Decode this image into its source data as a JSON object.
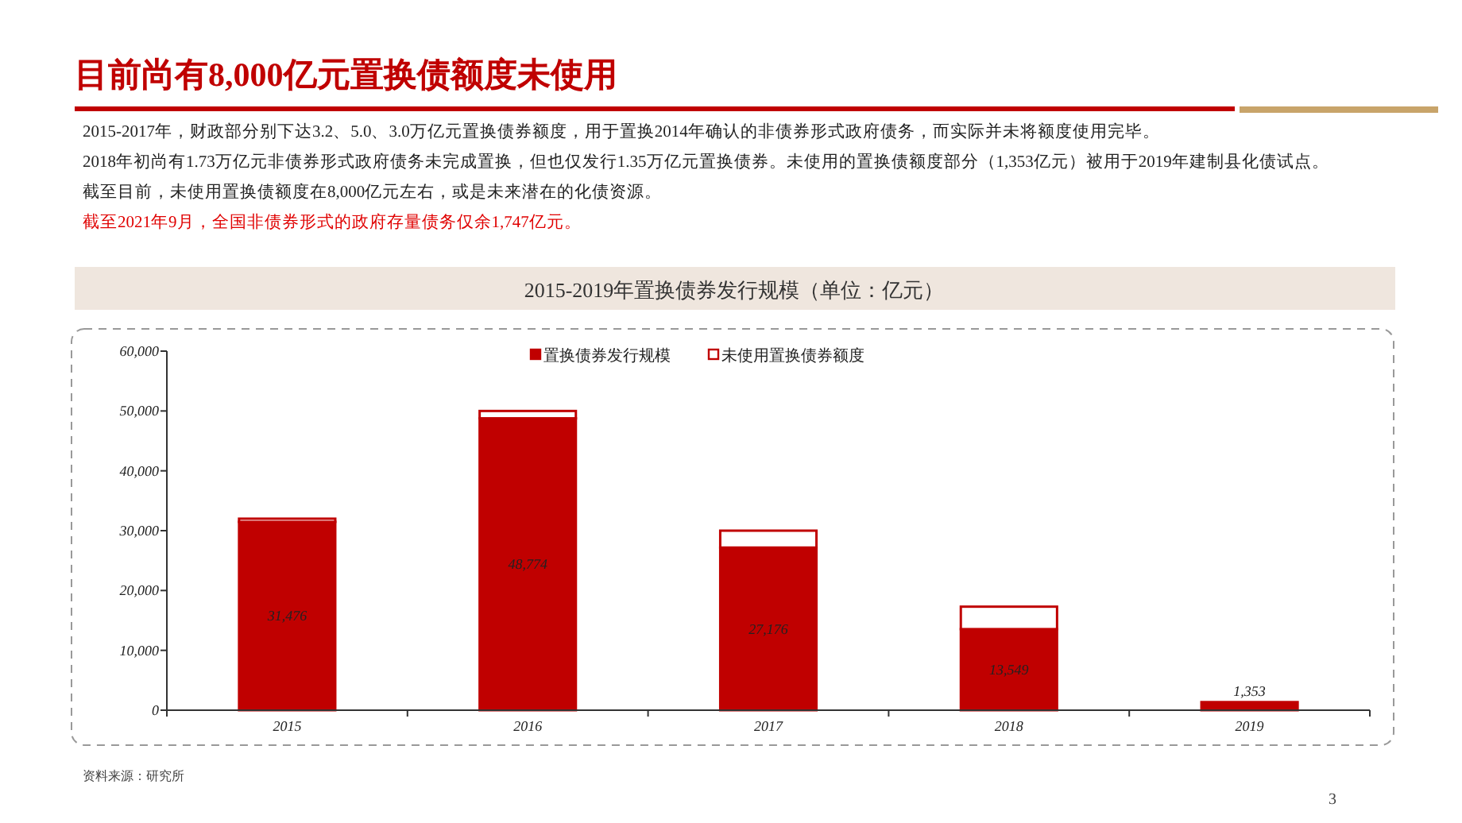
{
  "chart_data": {
    "type": "bar",
    "title": "目前尚有8,000亿元置换债额度未使用",
    "subtitle": "2015-2019年置换债券发行规模（单位：亿元）",
    "annotations": [
      "2015-2017年，财政部分别下达3.2、5.0、3.0万亿元置换债券额度，用于置换2014年确认的非债券形式政府债务，而实际并未将额度使用完毕。",
      "2018年初尚有1.73万亿元非债券形式政府债务未完成置换，但也仅发行1.35万亿元置换债券。未使用的置换债额度部分（1,353亿元）被用于2019年建制县化债试点。",
      "截至目前，未使用置换债额度在8,000亿元左右，或是未来潜在的化债资源。",
      "截至2021年9月，全国非债券形式的政府存量债务仅余1,747亿元。",
      "资料来源：研究所",
      "3"
    ],
    "categories": [
      "2015",
      "2016",
      "2017",
      "2018",
      "2019"
    ],
    "stacked": true,
    "series": [
      {
        "name": "置换债券发行规模",
        "color": "#c00000",
        "values": [
          31476,
          48774,
          27176,
          13549,
          1353
        ],
        "value_labels": [
          "31,476",
          "48,774",
          "27,176",
          "13,549",
          "1,353"
        ]
      },
      {
        "name": "未使用置换债券额度",
        "color": "#ffffff",
        "values": [
          524,
          1226,
          2824,
          3751,
          0
        ]
      }
    ],
    "ylim": [
      0,
      60000
    ],
    "yticks": [
      {
        "value": 0,
        "label": "0"
      },
      {
        "value": 10000,
        "label": "10,000"
      },
      {
        "value": 20000,
        "label": "20,000"
      },
      {
        "value": 30000,
        "label": "30,000"
      },
      {
        "value": 40000,
        "label": "40,000"
      },
      {
        "value": 50000,
        "label": "50,000"
      },
      {
        "value": 60000,
        "label": "60,000"
      }
    ],
    "legend": "top"
  }
}
